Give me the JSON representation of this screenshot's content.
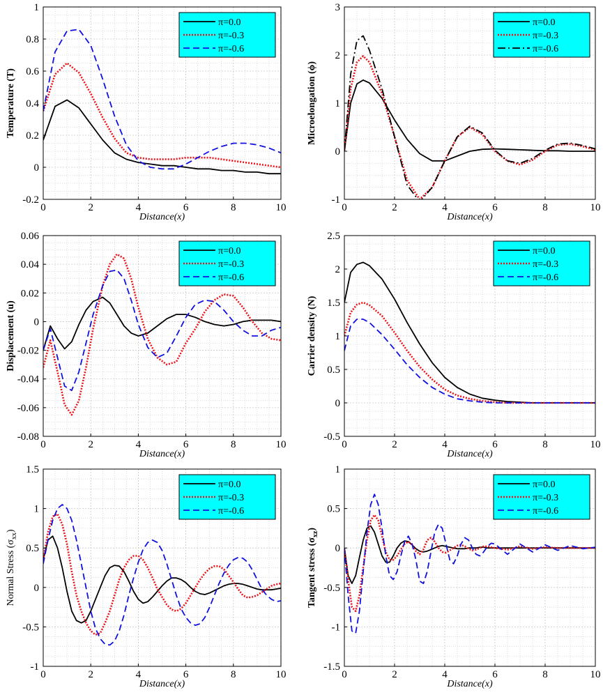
{
  "colors": {
    "black": "#000000",
    "red": "#e8141a",
    "blue": "#1010e0",
    "legend_bg": "#00ffff",
    "grid": "#bbbbbb"
  },
  "chart_data": [
    {
      "type": "line",
      "ylabel": "Temperature (T)",
      "xlabel": "Distance(x)",
      "xlim": [
        0,
        10
      ],
      "ylim": [
        -0.2,
        1
      ],
      "xticks": [
        "0",
        "2",
        "4",
        "6",
        "8",
        "10"
      ],
      "yticks": [
        "-0.2",
        "0",
        "0.2",
        "0.4",
        "0.6",
        "0.8",
        "1"
      ],
      "legend": "top-right",
      "x": [
        0,
        0.5,
        1,
        1.5,
        2,
        2.5,
        3,
        3.5,
        4,
        4.5,
        5,
        5.5,
        6,
        6.5,
        7,
        7.5,
        8,
        8.5,
        9,
        9.5,
        10
      ],
      "series": [
        {
          "name": "π=0.0",
          "style": "solid",
          "color": "black",
          "values": [
            0.17,
            0.38,
            0.42,
            0.37,
            0.27,
            0.17,
            0.09,
            0.05,
            0.03,
            0.02,
            0.01,
            0.01,
            0.0,
            -0.01,
            -0.01,
            -0.02,
            -0.02,
            -0.03,
            -0.03,
            -0.04,
            -0.04
          ]
        },
        {
          "name": "π=-0.3",
          "style": "dotted",
          "color": "red",
          "values": [
            0.35,
            0.58,
            0.65,
            0.59,
            0.46,
            0.31,
            0.18,
            0.09,
            0.06,
            0.05,
            0.05,
            0.05,
            0.06,
            0.06,
            0.06,
            0.05,
            0.04,
            0.03,
            0.02,
            0.01,
            0.0
          ]
        },
        {
          "name": "π=-0.6",
          "style": "dashed",
          "color": "blue",
          "values": [
            0.35,
            0.72,
            0.85,
            0.86,
            0.76,
            0.55,
            0.32,
            0.14,
            0.04,
            0.0,
            -0.01,
            -0.01,
            0.02,
            0.06,
            0.1,
            0.13,
            0.15,
            0.15,
            0.14,
            0.12,
            0.09
          ]
        }
      ]
    },
    {
      "type": "line",
      "ylabel": "Microelongation (ϕ)",
      "xlabel": "Distance(x)",
      "xlim": [
        0,
        10
      ],
      "ylim": [
        -1,
        3
      ],
      "xticks": [
        "0",
        "2",
        "4",
        "6",
        "8",
        "10"
      ],
      "yticks": [
        "-1",
        "0",
        "1",
        "2",
        "3"
      ],
      "legend": "top-right",
      "x": [
        0,
        0.25,
        0.5,
        0.75,
        1,
        1.5,
        2,
        2.5,
        3,
        3.5,
        4,
        4.5,
        5,
        5.5,
        6,
        6.5,
        7,
        7.5,
        8,
        8.5,
        9,
        9.5,
        10
      ],
      "series": [
        {
          "name": "π=0.0",
          "style": "solid",
          "color": "black",
          "values": [
            0,
            1.0,
            1.4,
            1.48,
            1.42,
            1.1,
            0.65,
            0.25,
            -0.05,
            -0.2,
            -0.2,
            -0.1,
            0.0,
            0.04,
            0.05,
            0.04,
            0.03,
            0.02,
            0.01,
            0.01,
            0.0,
            0.0,
            0.0
          ]
        },
        {
          "name": "π=-0.3",
          "style": "dotted",
          "color": "red",
          "values": [
            0,
            1.3,
            1.85,
            1.98,
            1.85,
            1.2,
            0.3,
            -0.6,
            -1.0,
            -0.75,
            -0.2,
            0.3,
            0.5,
            0.35,
            0.0,
            -0.2,
            -0.28,
            -0.18,
            0.0,
            0.13,
            0.15,
            0.1,
            0.03
          ]
        },
        {
          "name": "π=-0.6",
          "style": "dashdot",
          "color": "black",
          "values": [
            0,
            1.6,
            2.3,
            2.4,
            2.1,
            1.3,
            0.3,
            -0.7,
            -1.05,
            -0.75,
            -0.2,
            0.3,
            0.52,
            0.38,
            0.02,
            -0.2,
            -0.25,
            -0.15,
            0.02,
            0.15,
            0.17,
            0.12,
            0.05
          ]
        }
      ]
    },
    {
      "type": "line",
      "ylabel": "Displacement (u)",
      "xlabel": "Distance(x)",
      "xlim": [
        0,
        10
      ],
      "ylim": [
        -0.08,
        0.06
      ],
      "xticks": [
        "0",
        "2",
        "4",
        "6",
        "8",
        "10"
      ],
      "yticks": [
        "-0.08",
        "-0.06",
        "-0.04",
        "-0.02",
        "0",
        "0.02",
        "0.04",
        "0.06"
      ],
      "legend": "top-right",
      "x": [
        0,
        0.3,
        0.6,
        0.9,
        1.2,
        1.5,
        1.8,
        2.1,
        2.5,
        2.8,
        3.1,
        3.4,
        3.7,
        4.0,
        4.4,
        4.8,
        5.2,
        5.6,
        6.0,
        6.4,
        6.8,
        7.2,
        7.6,
        8.0,
        8.4,
        8.8,
        9.2,
        9.6,
        10
      ],
      "series": [
        {
          "name": "π=0.0",
          "style": "solid",
          "color": "black",
          "values": [
            -0.02,
            -0.003,
            -0.012,
            -0.019,
            -0.014,
            -0.002,
            0.008,
            0.014,
            0.017,
            0.013,
            0.005,
            -0.003,
            -0.008,
            -0.01,
            -0.008,
            -0.003,
            0.002,
            0.005,
            0.005,
            0.003,
            0.0,
            -0.002,
            -0.003,
            -0.002,
            0.0,
            0.001,
            0.001,
            0.001,
            0.0
          ]
        },
        {
          "name": "π=-0.3",
          "style": "dotted",
          "color": "red",
          "values": [
            -0.032,
            -0.013,
            -0.035,
            -0.058,
            -0.065,
            -0.055,
            -0.032,
            -0.005,
            0.025,
            0.04,
            0.047,
            0.044,
            0.03,
            0.01,
            -0.012,
            -0.025,
            -0.03,
            -0.028,
            -0.015,
            -0.005,
            0.007,
            0.015,
            0.019,
            0.018,
            0.01,
            0.0,
            -0.008,
            -0.012,
            -0.013
          ]
        },
        {
          "name": "π=-0.6",
          "style": "dashed",
          "color": "blue",
          "values": [
            -0.02,
            -0.005,
            -0.025,
            -0.045,
            -0.048,
            -0.035,
            -0.015,
            0.005,
            0.025,
            0.035,
            0.036,
            0.03,
            0.015,
            -0.002,
            -0.018,
            -0.025,
            -0.022,
            -0.01,
            0.003,
            0.012,
            0.015,
            0.014,
            0.008,
            0.0,
            -0.006,
            -0.01,
            -0.01,
            -0.006,
            -0.004
          ]
        }
      ]
    },
    {
      "type": "line",
      "ylabel": "Carrier density (N)",
      "xlabel": "Distance(x)",
      "xlim": [
        0,
        10
      ],
      "ylim": [
        -0.5,
        2.5
      ],
      "xticks": [
        "0",
        "2",
        "4",
        "6",
        "8",
        "10"
      ],
      "yticks": [
        "-0.5",
        "0",
        "0.5",
        "1",
        "1.5",
        "2",
        "2.5"
      ],
      "legend": "top-right",
      "x": [
        0,
        0.25,
        0.5,
        0.75,
        1,
        1.5,
        2,
        2.5,
        3,
        3.5,
        4,
        4.5,
        5,
        5.5,
        6,
        6.5,
        7,
        7.5,
        8,
        8.5,
        9,
        9.5,
        10
      ],
      "series": [
        {
          "name": "π=0.0",
          "style": "solid",
          "color": "black",
          "values": [
            1.5,
            1.95,
            2.07,
            2.1,
            2.05,
            1.85,
            1.55,
            1.2,
            0.88,
            0.6,
            0.38,
            0.23,
            0.13,
            0.07,
            0.04,
            0.02,
            0.01,
            0.0,
            0.0,
            0.0,
            0.0,
            0.0,
            0.0
          ]
        },
        {
          "name": "π=-0.3",
          "style": "dotted",
          "color": "red",
          "values": [
            1.0,
            1.35,
            1.47,
            1.5,
            1.46,
            1.3,
            1.05,
            0.78,
            0.54,
            0.35,
            0.2,
            0.11,
            0.06,
            0.03,
            0.01,
            0.0,
            0.0,
            0.0,
            0.0,
            0.0,
            0.0,
            0.0,
            0.0
          ]
        },
        {
          "name": "π=-0.6",
          "style": "dashed",
          "color": "blue",
          "values": [
            0.78,
            1.15,
            1.25,
            1.25,
            1.2,
            1.02,
            0.8,
            0.57,
            0.38,
            0.23,
            0.13,
            0.06,
            0.03,
            0.01,
            0.0,
            0.0,
            0.0,
            0.0,
            0.0,
            0.0,
            0.0,
            0.0,
            0.0
          ]
        }
      ]
    },
    {
      "type": "line",
      "ylabel": "Normal Stress (σ",
      "ylabel_sub": "xx",
      "ylabel_end": ")",
      "xlabel": "Distance(x)",
      "xlim": [
        0,
        10
      ],
      "ylim": [
        -1,
        1.5
      ],
      "xticks": [
        "0",
        "2",
        "4",
        "6",
        "8",
        "10"
      ],
      "yticks": [
        "-1",
        "-0.5",
        "0",
        "0.5",
        "1",
        "1.5"
      ],
      "legend": "top-right",
      "x": [
        0,
        0.2,
        0.4,
        0.6,
        0.8,
        1.0,
        1.2,
        1.4,
        1.6,
        1.8,
        2.0,
        2.2,
        2.4,
        2.6,
        2.8,
        3.0,
        3.2,
        3.4,
        3.6,
        3.8,
        4.0,
        4.2,
        4.4,
        4.6,
        4.8,
        5.0,
        5.2,
        5.4,
        5.6,
        5.8,
        6.0,
        6.2,
        6.4,
        6.6,
        6.8,
        7.0,
        7.2,
        7.4,
        7.6,
        7.8,
        8.0,
        8.2,
        8.4,
        8.6,
        8.8,
        9.0,
        9.2,
        9.4,
        9.6,
        9.8,
        10.0
      ],
      "series": [
        {
          "name": "π=0.0",
          "style": "solid",
          "color": "black",
          "values": [
            0.35,
            0.6,
            0.65,
            0.5,
            0.25,
            -0.05,
            -0.3,
            -0.42,
            -0.45,
            -0.42,
            -0.3,
            -0.15,
            0.0,
            0.15,
            0.25,
            0.28,
            0.27,
            0.2,
            0.08,
            -0.05,
            -0.15,
            -0.2,
            -0.18,
            -0.12,
            -0.05,
            0.02,
            0.08,
            0.12,
            0.12,
            0.1,
            0.06,
            0.0,
            -0.05,
            -0.08,
            -0.09,
            -0.07,
            -0.04,
            -0.01,
            0.02,
            0.04,
            0.05,
            0.05,
            0.04,
            0.02,
            0.0,
            -0.02,
            -0.03,
            -0.03,
            -0.03,
            -0.02,
            -0.01
          ]
        },
        {
          "name": "π=-0.3",
          "style": "dotted",
          "color": "red",
          "values": [
            0.35,
            0.7,
            0.9,
            0.93,
            0.8,
            0.55,
            0.2,
            -0.1,
            -0.3,
            -0.45,
            -0.55,
            -0.6,
            -0.58,
            -0.45,
            -0.3,
            -0.1,
            0.1,
            0.25,
            0.35,
            0.4,
            0.4,
            0.35,
            0.25,
            0.12,
            -0.02,
            -0.12,
            -0.22,
            -0.28,
            -0.3,
            -0.27,
            -0.2,
            -0.1,
            0.0,
            0.1,
            0.18,
            0.24,
            0.27,
            0.27,
            0.23,
            0.15,
            0.07,
            -0.02,
            -0.1,
            -0.13,
            -0.12,
            -0.1,
            -0.06,
            -0.02,
            0.02,
            0.04,
            0.05
          ]
        },
        {
          "name": "π=-0.6",
          "style": "dashed",
          "color": "blue",
          "values": [
            0.3,
            0.6,
            0.85,
            1.0,
            1.05,
            1.0,
            0.85,
            0.6,
            0.3,
            0.0,
            -0.3,
            -0.52,
            -0.65,
            -0.72,
            -0.73,
            -0.68,
            -0.55,
            -0.35,
            -0.1,
            0.12,
            0.32,
            0.48,
            0.57,
            0.6,
            0.57,
            0.47,
            0.3,
            0.1,
            -0.1,
            -0.27,
            -0.38,
            -0.45,
            -0.48,
            -0.46,
            -0.38,
            -0.25,
            -0.1,
            0.05,
            0.18,
            0.28,
            0.35,
            0.38,
            0.37,
            0.32,
            0.22,
            0.1,
            -0.02,
            -0.1,
            -0.15,
            -0.18,
            -0.17
          ]
        }
      ]
    },
    {
      "type": "line",
      "ylabel": "Tangent stress (σ",
      "ylabel_sub": "xz",
      "ylabel_end": ")",
      "xlabel": "Distance(x)",
      "xlim": [
        0,
        10
      ],
      "ylim": [
        -1.5,
        1
      ],
      "xticks": [
        "0",
        "2",
        "4",
        "6",
        "8",
        "10"
      ],
      "yticks": [
        "-1.5",
        "-1",
        "-0.5",
        "0",
        "0.5",
        "1"
      ],
      "legend": "top-right",
      "x": [
        0,
        0.15,
        0.3,
        0.45,
        0.6,
        0.75,
        0.9,
        1.05,
        1.2,
        1.35,
        1.5,
        1.65,
        1.8,
        1.95,
        2.1,
        2.25,
        2.4,
        2.55,
        2.7,
        2.85,
        3.0,
        3.15,
        3.3,
        3.45,
        3.6,
        3.75,
        3.9,
        4.05,
        4.2,
        4.35,
        4.5,
        4.65,
        4.8,
        4.95,
        5.1,
        5.25,
        5.4,
        5.55,
        5.7,
        5.85,
        6.0,
        6.5,
        7.0,
        7.5,
        8.0,
        8.5,
        9.0,
        9.5,
        10.0
      ],
      "series": [
        {
          "name": "π=0.0",
          "style": "solid",
          "color": "black",
          "values": [
            0.0,
            -0.35,
            -0.45,
            -0.35,
            -0.12,
            0.1,
            0.25,
            0.28,
            0.2,
            0.05,
            -0.1,
            -0.18,
            -0.18,
            -0.1,
            0.0,
            0.06,
            0.09,
            0.08,
            0.04,
            -0.01,
            -0.04,
            -0.05,
            -0.04,
            -0.02,
            0.0,
            0.02,
            0.03,
            0.02,
            0.01,
            0.0,
            -0.01,
            -0.01,
            -0.01,
            0.0,
            0.0,
            0.0,
            0.01,
            0.01,
            0.0,
            0.0,
            0.0,
            0.0,
            0.0,
            0.0,
            0.0,
            0.0,
            0.0,
            0.0,
            0.0
          ]
        },
        {
          "name": "π=-0.3",
          "style": "dotted",
          "color": "red",
          "values": [
            0.0,
            -0.4,
            -0.75,
            -0.8,
            -0.6,
            -0.25,
            0.1,
            0.35,
            0.42,
            0.35,
            0.15,
            -0.05,
            -0.15,
            -0.15,
            -0.1,
            -0.02,
            0.05,
            0.08,
            0.04,
            -0.04,
            -0.08,
            -0.02,
            0.1,
            0.13,
            0.08,
            0.0,
            -0.05,
            -0.06,
            -0.03,
            0.0,
            0.03,
            0.04,
            0.02,
            -0.01,
            -0.03,
            -0.02,
            0.0,
            0.02,
            0.02,
            0.01,
            0.0,
            -0.02,
            0.02,
            -0.01,
            0.01,
            0.0,
            0.0,
            0.0,
            0.0
          ]
        },
        {
          "name": "π=-0.6",
          "style": "dashed",
          "color": "blue",
          "values": [
            0.0,
            -0.6,
            -1.05,
            -1.08,
            -0.8,
            -0.3,
            0.2,
            0.55,
            0.68,
            0.55,
            0.25,
            -0.1,
            -0.35,
            -0.4,
            -0.3,
            -0.1,
            0.08,
            0.15,
            0.05,
            -0.15,
            -0.42,
            -0.45,
            -0.3,
            -0.05,
            0.2,
            0.3,
            0.25,
            0.05,
            -0.15,
            -0.2,
            -0.1,
            0.05,
            0.13,
            0.1,
            0.0,
            -0.08,
            -0.1,
            -0.05,
            0.02,
            0.06,
            0.05,
            -0.08,
            0.05,
            -0.05,
            0.04,
            -0.03,
            0.03,
            -0.01,
            0.01
          ]
        }
      ]
    }
  ]
}
